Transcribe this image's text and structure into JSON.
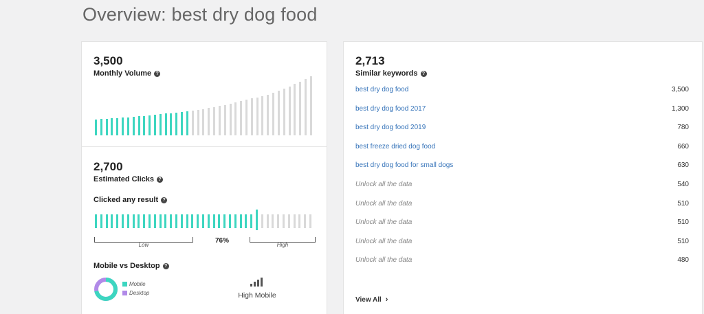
{
  "page": {
    "title": "Overview: best dry dog food"
  },
  "monthly_volume": {
    "value": "3,500",
    "label": "Monthly Volume",
    "trend": {
      "teal_bars": [
        24,
        25,
        25,
        26,
        26,
        27,
        27,
        28,
        29,
        29,
        30,
        31,
        32,
        33,
        34,
        35,
        36,
        37
      ],
      "grey_bars": [
        38,
        39,
        40,
        42,
        43,
        45,
        46,
        48,
        50,
        52,
        54,
        56,
        58,
        60,
        62,
        65,
        68,
        71,
        74,
        78,
        82,
        86,
        90
      ]
    }
  },
  "estimated_clicks": {
    "value": "2,700",
    "label": "Estimated Clicks",
    "clicked_label": "Clicked any result",
    "percent": "76%",
    "percent_value": 0.76,
    "low_label": "Low",
    "high_label": "High"
  },
  "mobile_desktop": {
    "label": "Mobile vs Desktop",
    "legend": [
      {
        "name": "Mobile",
        "color": "#3dd6c0"
      },
      {
        "name": "Desktop",
        "color": "#b18ae8"
      }
    ],
    "mobile_share": 0.72,
    "result": "High Mobile"
  },
  "similar_keywords": {
    "value": "2,713",
    "label": "Similar keywords",
    "rows": [
      {
        "keyword": "best dry dog food",
        "volume": "3,500",
        "locked": false
      },
      {
        "keyword": "best dry dog food 2017",
        "volume": "1,300",
        "locked": false
      },
      {
        "keyword": "best dry dog food 2019",
        "volume": "780",
        "locked": false
      },
      {
        "keyword": "best freeze dried dog food",
        "volume": "660",
        "locked": false
      },
      {
        "keyword": "best dry dog food for small dogs",
        "volume": "630",
        "locked": false
      },
      {
        "keyword": "Unlock all the data",
        "volume": "540",
        "locked": true
      },
      {
        "keyword": "Unlock all the data",
        "volume": "510",
        "locked": true
      },
      {
        "keyword": "Unlock all the data",
        "volume": "510",
        "locked": true
      },
      {
        "keyword": "Unlock all the data",
        "volume": "510",
        "locked": true
      },
      {
        "keyword": "Unlock all the data",
        "volume": "480",
        "locked": true
      }
    ],
    "view_all": "View All"
  }
}
